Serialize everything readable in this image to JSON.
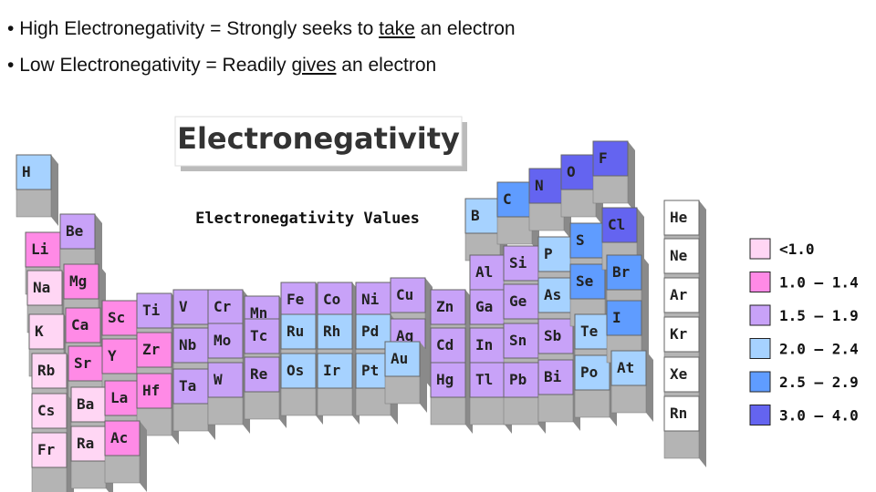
{
  "bullets": [
    {
      "before": "High Electronegativity = Strongly seeks to ",
      "underlined": "take",
      "after": " an electron"
    },
    {
      "before": "Low Electronegativity = Readily ",
      "underlined": "gives",
      "after": " an electron"
    }
  ],
  "figure": {
    "title": "Electronegativity",
    "subtitle": "Electronegativity Values",
    "elements": [
      "H",
      "Li",
      "Be",
      "Na",
      "Mg",
      "K",
      "Ca",
      "Sc",
      "Ti",
      "V",
      "Cr",
      "Mn",
      "Fe",
      "Co",
      "Ni",
      "Cu",
      "Rb",
      "Sr",
      "Y",
      "Zr",
      "Nb",
      "Mo",
      "Tc",
      "Ru",
      "Rh",
      "Pd",
      "Ag",
      "Cs",
      "Ba",
      "La",
      "Hf",
      "Ta",
      "W",
      "Re",
      "Os",
      "Ir",
      "Pt",
      "Au",
      "Fr",
      "Ra",
      "Ac",
      "Zn",
      "Cd",
      "Hg",
      "B",
      "Al",
      "Ga",
      "In",
      "Tl",
      "C",
      "Si",
      "Ge",
      "Sn",
      "Pb",
      "N",
      "P",
      "As",
      "Sb",
      "Bi",
      "O",
      "S",
      "Se",
      "Te",
      "Po",
      "F",
      "Cl",
      "Br",
      "I",
      "At",
      "He",
      "Ne",
      "Ar",
      "Kr",
      "Xe",
      "Rn"
    ],
    "legend": [
      "<1.0",
      "1.0 — 1.4",
      "1.5 — 1.9",
      "2.0 — 2.4",
      "2.5 — 2.9",
      "3.0 — 4.0"
    ]
  }
}
